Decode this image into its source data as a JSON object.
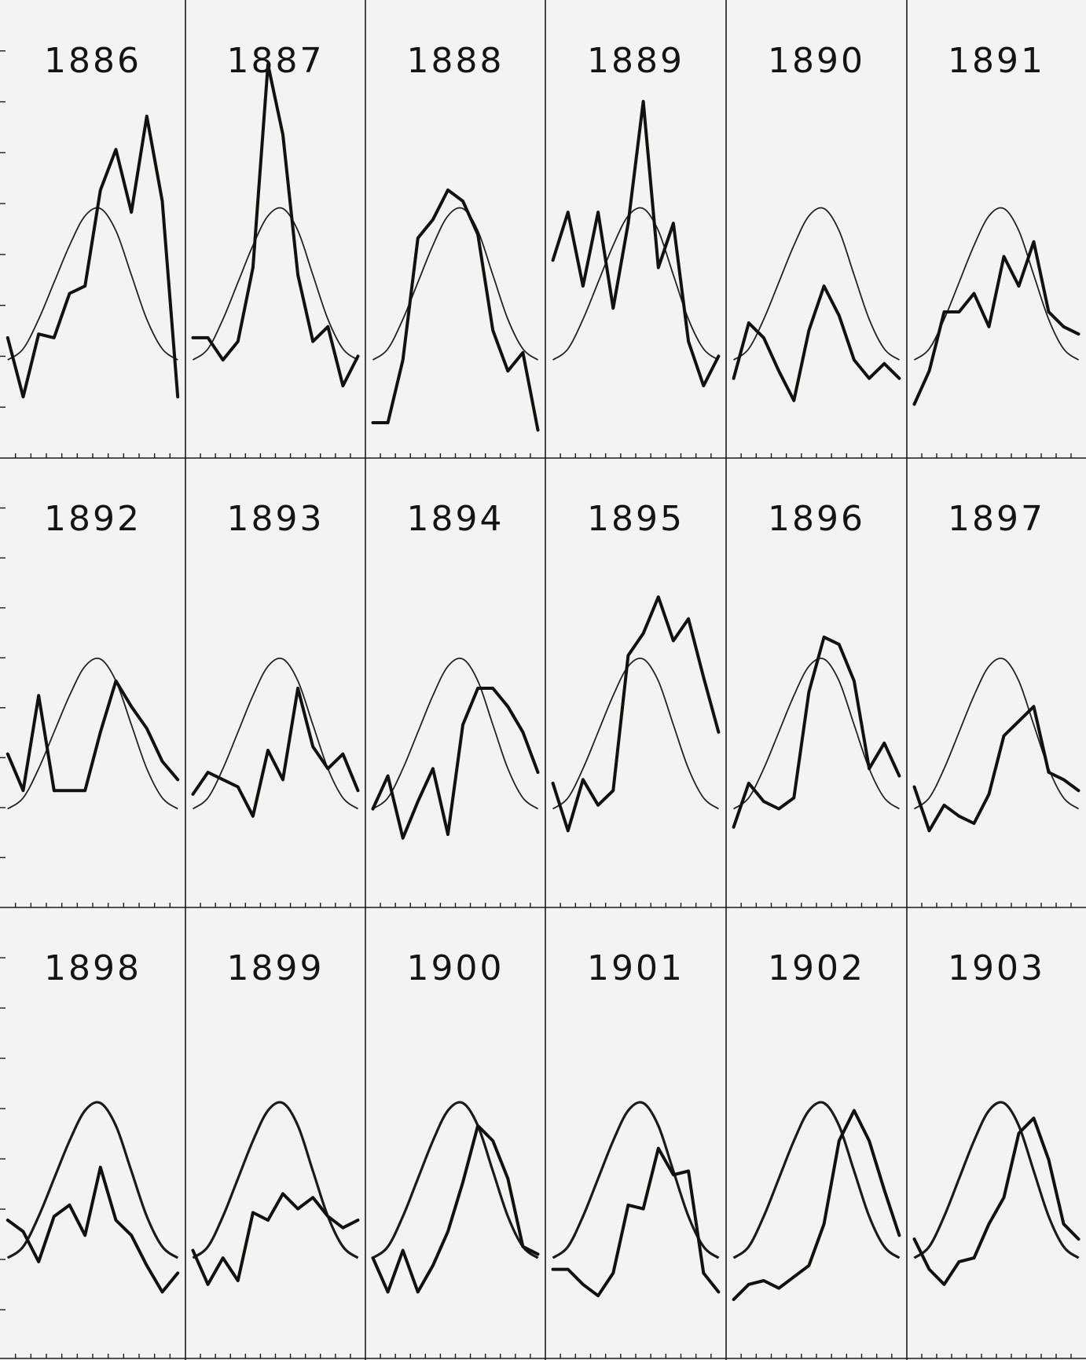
{
  "chart_data": {
    "type": "line",
    "title": "",
    "xlabel": "",
    "ylabel": "",
    "layout": "small-multiples",
    "columns": 6,
    "rows": 3,
    "grid": true,
    "points_per_year": 12,
    "ylim": [
      0,
      100
    ],
    "series_styles": {
      "observed": "thick-line",
      "fitted_curve": "thin-line"
    },
    "panels": [
      {
        "year": "1886",
        "observed": [
          33,
          17,
          34,
          33,
          45,
          47,
          73,
          84,
          67,
          93,
          70,
          17
        ],
        "fitted": [
          27,
          30,
          38,
          48,
          58,
          66,
          68,
          62,
          50,
          38,
          30,
          27
        ]
      },
      {
        "year": "1887",
        "observed": [
          33,
          33,
          27,
          32,
          52,
          107,
          88,
          50,
          32,
          36,
          20,
          28
        ],
        "fitted": [
          27,
          30,
          38,
          48,
          58,
          66,
          68,
          62,
          50,
          38,
          30,
          27
        ]
      },
      {
        "year": "1888",
        "observed": [
          10,
          10,
          27,
          60,
          65,
          73,
          70,
          61,
          35,
          24,
          29,
          8
        ],
        "fitted": [
          27,
          30,
          38,
          48,
          58,
          66,
          68,
          62,
          50,
          38,
          30,
          27
        ]
      },
      {
        "year": "1889",
        "observed": [
          54,
          67,
          47,
          67,
          41,
          64,
          97,
          52,
          64,
          32,
          20,
          28
        ],
        "fitted": [
          27,
          30,
          38,
          48,
          58,
          66,
          68,
          62,
          50,
          38,
          30,
          27
        ]
      },
      {
        "year": "1890",
        "observed": [
          22,
          37,
          33,
          24,
          16,
          35,
          47,
          39,
          27,
          22,
          26,
          22
        ],
        "fitted": [
          27,
          30,
          38,
          48,
          58,
          66,
          68,
          62,
          50,
          38,
          30,
          27
        ]
      },
      {
        "year": "1891",
        "observed": [
          15,
          24,
          40,
          40,
          45,
          36,
          55,
          47,
          59,
          40,
          36,
          34
        ],
        "fitted": [
          27,
          30,
          38,
          48,
          58,
          66,
          68,
          62,
          50,
          38,
          30,
          27
        ]
      },
      {
        "year": "1892",
        "observed": [
          42,
          32,
          58,
          32,
          32,
          32,
          48,
          62,
          55,
          49,
          40,
          35
        ],
        "fitted": [
          27,
          30,
          38,
          48,
          58,
          66,
          68,
          62,
          50,
          38,
          30,
          27
        ]
      },
      {
        "year": "1893",
        "observed": [
          31,
          37,
          35,
          33,
          25,
          43,
          35,
          60,
          44,
          38,
          42,
          32
        ],
        "fitted": [
          27,
          30,
          38,
          48,
          58,
          66,
          68,
          62,
          50,
          38,
          30,
          27
        ]
      },
      {
        "year": "1894",
        "observed": [
          27,
          36,
          19,
          29,
          38,
          20,
          50,
          60,
          60,
          55,
          48,
          37
        ],
        "fitted": [
          27,
          30,
          38,
          48,
          58,
          66,
          68,
          62,
          50,
          38,
          30,
          27
        ]
      },
      {
        "year": "1895",
        "observed": [
          34,
          21,
          35,
          28,
          32,
          69,
          75,
          85,
          73,
          79,
          63,
          48
        ],
        "fitted": [
          27,
          30,
          38,
          48,
          58,
          66,
          68,
          62,
          50,
          38,
          30,
          27
        ]
      },
      {
        "year": "1896",
        "observed": [
          22,
          34,
          29,
          27,
          30,
          59,
          74,
          72,
          62,
          38,
          45,
          36
        ],
        "fitted": [
          27,
          30,
          38,
          48,
          58,
          66,
          68,
          62,
          50,
          38,
          30,
          27
        ]
      },
      {
        "year": "1897",
        "observed": [
          33,
          21,
          28,
          25,
          23,
          31,
          47,
          51,
          55,
          37,
          35,
          32
        ],
        "fitted": [
          27,
          30,
          38,
          48,
          58,
          66,
          68,
          62,
          50,
          38,
          30,
          27
        ]
      },
      {
        "year": "1898",
        "observed": [
          37,
          34,
          26,
          38,
          41,
          33,
          51,
          37,
          33,
          25,
          18,
          23
        ],
        "fitted": [
          27,
          30,
          38,
          48,
          58,
          66,
          68,
          62,
          50,
          38,
          30,
          27
        ]
      },
      {
        "year": "1899",
        "observed": [
          29,
          20,
          27,
          21,
          39,
          37,
          44,
          40,
          43,
          38,
          35,
          37
        ],
        "fitted": [
          27,
          30,
          38,
          48,
          58,
          66,
          68,
          62,
          50,
          38,
          30,
          27
        ]
      },
      {
        "year": "1900",
        "observed": [
          27,
          18,
          29,
          18,
          25,
          34,
          47,
          62,
          58,
          48,
          30,
          28
        ],
        "fitted": [
          27,
          30,
          38,
          48,
          58,
          66,
          68,
          62,
          50,
          38,
          30,
          27
        ]
      },
      {
        "year": "1901",
        "observed": [
          24,
          24,
          20,
          17,
          23,
          41,
          40,
          56,
          49,
          50,
          23,
          18
        ],
        "fitted": [
          27,
          30,
          38,
          48,
          58,
          66,
          68,
          62,
          50,
          38,
          30,
          27
        ]
      },
      {
        "year": "1902",
        "observed": [
          16,
          20,
          21,
          19,
          22,
          25,
          36,
          58,
          66,
          58,
          45,
          33
        ],
        "fitted": [
          27,
          30,
          38,
          48,
          58,
          66,
          68,
          62,
          50,
          38,
          30,
          27
        ]
      },
      {
        "year": "1903",
        "observed": [
          32,
          24,
          20,
          26,
          27,
          36,
          43,
          60,
          64,
          53,
          36,
          32
        ],
        "fitted": [
          27,
          30,
          38,
          48,
          58,
          66,
          68,
          62,
          50,
          38,
          30,
          27
        ]
      }
    ]
  }
}
